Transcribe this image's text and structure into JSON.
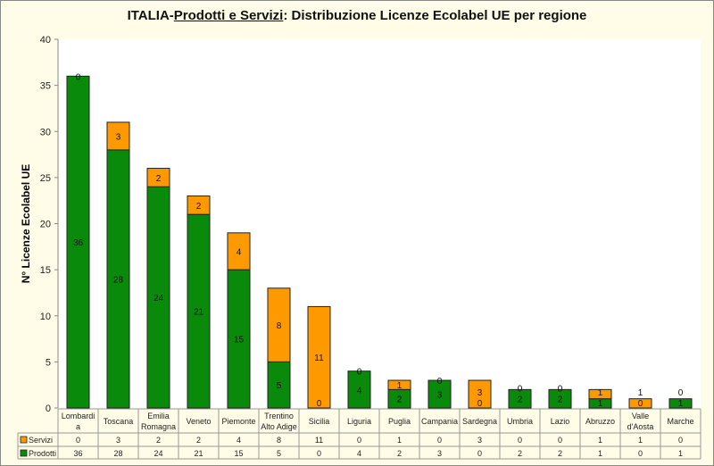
{
  "chart_data": {
    "type": "bar",
    "stacked": true,
    "title_parts": [
      "ITALIA-",
      "Prodotti e Servizi",
      ": Distribuzione  Licenze Ecolabel UE  per regione"
    ],
    "ylabel": "N° Licenze Ecolabel UE",
    "xlabel": "",
    "ylim": [
      0,
      40
    ],
    "yticks": [
      0,
      5,
      10,
      15,
      20,
      25,
      30,
      35,
      40
    ],
    "grid": false,
    "legend": "data-table",
    "categories": [
      [
        "Lombardi",
        "a"
      ],
      [
        "Toscana"
      ],
      [
        "Emilia",
        "Romagna"
      ],
      [
        "Veneto"
      ],
      [
        "Piemonte"
      ],
      [
        "Trentino",
        "Alto Adige"
      ],
      [
        "Sicilia"
      ],
      [
        "Liguria"
      ],
      [
        "Puglia"
      ],
      [
        "Campania"
      ],
      [
        "Sardegna"
      ],
      [
        "Umbria"
      ],
      [
        "Lazio"
      ],
      [
        "Abruzzo"
      ],
      [
        "Valle",
        "d'Aosta"
      ],
      [
        "Marche"
      ]
    ],
    "series": [
      {
        "name": "Prodotti",
        "color": "#0a8a0a",
        "values": [
          36,
          28,
          24,
          21,
          15,
          5,
          0,
          4,
          2,
          3,
          0,
          2,
          2,
          1,
          0,
          1
        ]
      },
      {
        "name": "Servizi",
        "color": "#ff9900",
        "values": [
          0,
          3,
          2,
          2,
          4,
          8,
          11,
          0,
          1,
          0,
          3,
          0,
          0,
          1,
          1,
          0
        ]
      }
    ],
    "table_rows": [
      "Servizi",
      "Prodotti"
    ]
  }
}
